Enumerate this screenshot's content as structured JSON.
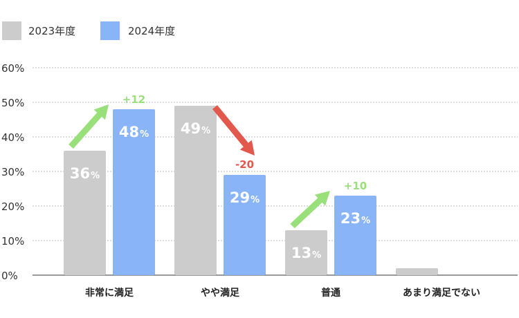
{
  "chart_data": {
    "type": "bar",
    "categories": [
      "非常に満足",
      "やや満足",
      "普通",
      "あまり満足でない"
    ],
    "series": [
      {
        "name": "2023年度",
        "color": "#cccccc",
        "values": [
          36,
          49,
          13,
          2
        ]
      },
      {
        "name": "2024年度",
        "color": "#8ab4f8",
        "values": [
          48,
          29,
          23,
          null
        ]
      }
    ],
    "ylim": [
      0,
      60
    ],
    "yticks": [
      "0%",
      "10%",
      "20%",
      "30%",
      "40%",
      "50%",
      "60%"
    ],
    "bar_value_labels": [
      {
        "series": 0,
        "category": 0,
        "value": "36",
        "unit": "%"
      },
      {
        "series": 1,
        "category": 0,
        "value": "48",
        "unit": "%"
      },
      {
        "series": 0,
        "category": 1,
        "value": "49",
        "unit": "%"
      },
      {
        "series": 1,
        "category": 1,
        "value": "29",
        "unit": "%"
      },
      {
        "series": 0,
        "category": 2,
        "value": "13",
        "unit": "%"
      },
      {
        "series": 1,
        "category": 2,
        "value": "23",
        "unit": "%"
      }
    ],
    "changes": [
      {
        "category": 0,
        "label": "+12",
        "direction": "up",
        "color": "#99e07a"
      },
      {
        "category": 1,
        "label": "-20",
        "direction": "down",
        "color": "#e2584d"
      },
      {
        "category": 2,
        "label": "+10",
        "direction": "up",
        "color": "#99e07a"
      }
    ],
    "grid": true,
    "legend": "top-left"
  }
}
